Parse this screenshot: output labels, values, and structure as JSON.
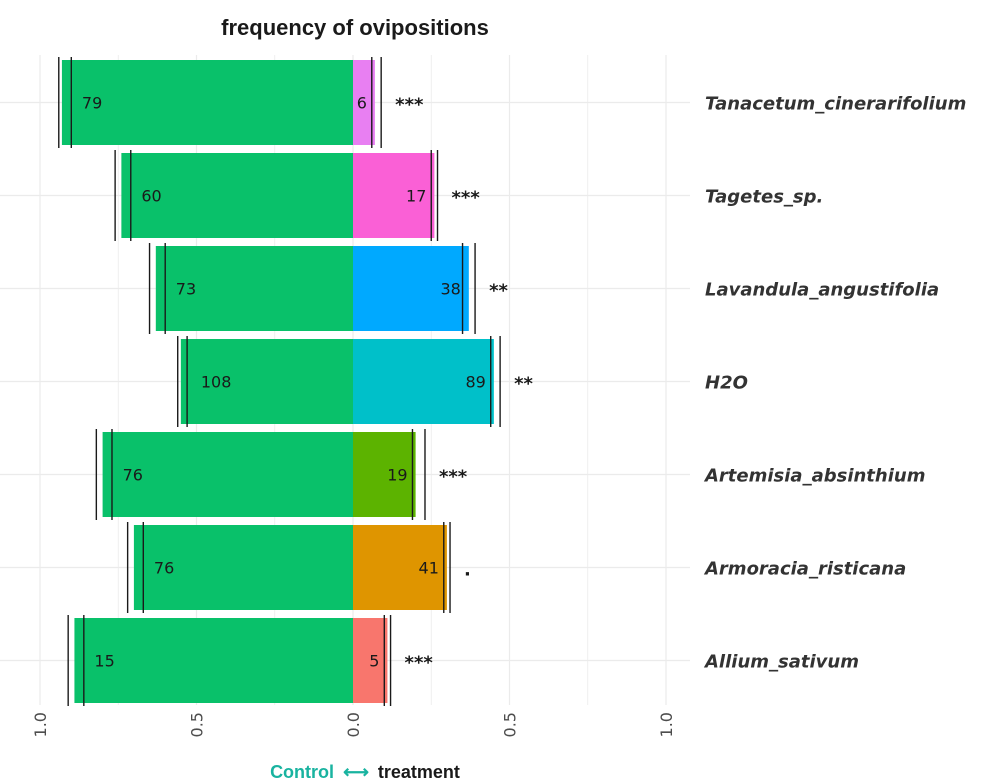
{
  "chart_data": {
    "type": "bar",
    "orientation": "horizontal-diverging",
    "title": "frequency of ovipositions",
    "xlabel_left": "Control",
    "xlabel_arrow": "⟷",
    "xlabel_right": "treatment",
    "xlim": [
      -1.0,
      1.0
    ],
    "x_ticks": [
      -1.0,
      -0.5,
      0.0,
      0.5,
      1.0
    ],
    "x_tick_labels": [
      "1.0",
      "0.5",
      "0.0",
      "0.5",
      "1.0"
    ],
    "grid": true,
    "categories": [
      "Tanacetum_cinerarifolium",
      "Tagetes_sp.",
      "Lavandula_angustifolia",
      "H2O",
      "Artemisia_absinthium",
      "Armoracia_risticana",
      "Allium_sativum"
    ],
    "series": [
      {
        "role": "control",
        "color": "#09c16a",
        "proportions": [
          0.93,
          0.74,
          0.63,
          0.55,
          0.8,
          0.7,
          0.89
        ],
        "counts": [
          "79",
          "60",
          "73",
          "108",
          "76",
          "76",
          "15"
        ],
        "error_bars": [
          [
            0.9,
            0.94
          ],
          [
            0.71,
            0.76
          ],
          [
            0.6,
            0.65
          ],
          [
            0.53,
            0.56
          ],
          [
            0.77,
            0.82
          ],
          [
            0.67,
            0.72
          ],
          [
            0.86,
            0.91
          ]
        ]
      },
      {
        "role": "treatment",
        "colors": [
          "#e87ff2",
          "#fa60d6",
          "#00a9ff",
          "#00c0c9",
          "#5cb300",
          "#df9500",
          "#f8766d"
        ],
        "proportions": [
          0.07,
          0.26,
          0.37,
          0.45,
          0.2,
          0.3,
          0.11
        ],
        "counts": [
          "6",
          "17",
          "38",
          "89",
          "19",
          "41",
          "5"
        ],
        "error_bars": [
          [
            0.06,
            0.09
          ],
          [
            0.25,
            0.27
          ],
          [
            0.35,
            0.39
          ],
          [
            0.44,
            0.47
          ],
          [
            0.19,
            0.23
          ],
          [
            0.29,
            0.31
          ],
          [
            0.1,
            0.12
          ]
        ]
      }
    ],
    "significance": [
      "***",
      "***",
      "**",
      "**",
      "***",
      ".",
      "***"
    ],
    "colors": {
      "control_label": "#19b3a0",
      "treatment_label": "#1a1a1a",
      "grid": "#ebebeb",
      "error_bar": "#1a1a1a"
    }
  }
}
